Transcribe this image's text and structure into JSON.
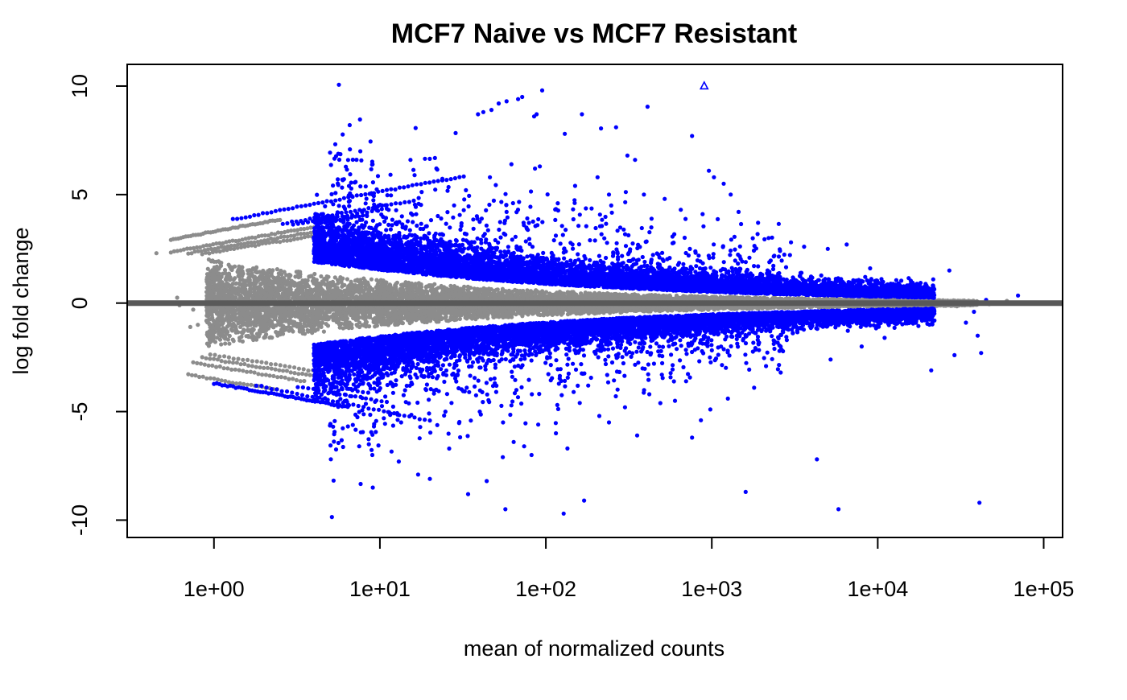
{
  "chart_data": {
    "type": "scatter",
    "title": "MCF7 Naive vs MCF7 Resistant",
    "xlabel": "mean of normalized counts",
    "ylabel": "log fold change",
    "x_scale": "log10",
    "xlim": [
      0.3,
      130000
    ],
    "ylim": [
      -10.8,
      11
    ],
    "x_ticks": [
      {
        "value": 1,
        "label": "1e+00"
      },
      {
        "value": 10,
        "label": "1e+01"
      },
      {
        "value": 100,
        "label": "1e+02"
      },
      {
        "value": 1000,
        "label": "1e+03"
      },
      {
        "value": 10000,
        "label": "1e+04"
      },
      {
        "value": 100000,
        "label": "1e+05"
      }
    ],
    "y_ticks": [
      {
        "value": -10,
        "label": "-10"
      },
      {
        "value": -5,
        "label": "-5"
      },
      {
        "value": 0,
        "label": "0"
      },
      {
        "value": 5,
        "label": "5"
      },
      {
        "value": 10,
        "label": "10"
      }
    ],
    "grid": false,
    "legend": "none",
    "reference_line": {
      "y": 0,
      "color": "#595959"
    },
    "colors": {
      "significant": "#0000ff",
      "not_significant": "#8c8c8c"
    },
    "series": [
      {
        "status": "significant",
        "color": "#0000ff",
        "points": [
          [
            95,
            9.8
          ],
          [
            72,
            9.5
          ],
          [
            68,
            9.4
          ],
          [
            58,
            9.3
          ],
          [
            52,
            9.2
          ],
          [
            47,
            8.9
          ],
          [
            42,
            8.8
          ],
          [
            39,
            8.7
          ],
          [
            410,
            9.05
          ],
          [
            165,
            8.7
          ],
          [
            88,
            8.7
          ],
          [
            85,
            8.6
          ],
          [
            215,
            8.05
          ],
          [
            265,
            8.1
          ],
          [
            130,
            7.8
          ],
          [
            760,
            7.7
          ],
          [
            310,
            6.8
          ],
          [
            345,
            6.6
          ],
          [
            92,
            6.3
          ],
          [
            86,
            6.2
          ],
          [
            960,
            6.1
          ],
          [
            1030,
            5.8
          ],
          [
            1180,
            5.5
          ],
          [
            1300,
            5.0
          ],
          [
            1900,
            3.7
          ],
          [
            3000,
            2.8
          ],
          [
            5000,
            2.5
          ],
          [
            6500,
            2.7
          ],
          [
            27000,
            1.5
          ],
          [
            70000,
            0.35
          ],
          [
            45000,
            0.15
          ],
          [
            38000,
            -0.4
          ],
          [
            34000,
            -0.9
          ],
          [
            40000,
            -1.5
          ],
          [
            42000,
            -2.3
          ],
          [
            29000,
            -2.4
          ],
          [
            21000,
            -3.1
          ],
          [
            41000,
            -9.2
          ],
          [
            4300,
            -7.2
          ],
          [
            1600,
            -8.7
          ],
          [
            5800,
            -9.5
          ],
          [
            128,
            -9.7
          ],
          [
            57,
            -9.5
          ],
          [
            34,
            -8.8
          ],
          [
            44,
            -8.2
          ],
          [
            170,
            -9.1
          ],
          [
            760,
            -6.2
          ],
          [
            860,
            -5.4
          ],
          [
            355,
            -6.1
          ],
          [
            135,
            -6.7
          ],
          [
            82,
            -7.0
          ],
          [
            74,
            -6.6
          ],
          [
            20,
            -8.1
          ],
          [
            17,
            -7.9
          ],
          [
            13,
            -7.3
          ],
          [
            55,
            -7.1
          ],
          [
            64,
            -6.4
          ],
          [
            115,
            -6.0
          ],
          [
            240,
            -5.5
          ],
          [
            9,
            -7.0
          ],
          [
            7.5,
            -6.6
          ],
          [
            390,
            5.0
          ],
          [
            520,
            4.8
          ],
          [
            650,
            4.3
          ],
          [
            880,
            4.1
          ],
          [
            150,
            5.4
          ],
          [
            205,
            5.8
          ],
          [
            240,
            5.0
          ],
          [
            118,
            4.6
          ],
          [
            62,
            6.4
          ],
          [
            46,
            5.8
          ],
          [
            58,
            4.2
          ],
          [
            33,
            5.2
          ],
          [
            28,
            4.5
          ],
          [
            1450,
            4.2
          ],
          [
            2200,
            3.0
          ],
          [
            3600,
            2.6
          ],
          [
            9000,
            1.6
          ],
          [
            16000,
            0.8
          ],
          [
            20000,
            0.6
          ],
          [
            11000,
            -1.6
          ],
          [
            8000,
            -2.0
          ],
          [
            5200,
            -2.6
          ],
          [
            2600,
            -3.2
          ],
          [
            1800,
            -3.9
          ],
          [
            1250,
            -4.4
          ],
          [
            980,
            -4.9
          ],
          [
            420,
            -4.2
          ],
          [
            300,
            -4.8
          ],
          [
            210,
            -5.2
          ],
          [
            90,
            -5.6
          ],
          [
            40,
            -5.0
          ],
          [
            27,
            -4.6
          ],
          [
            19,
            -4.0
          ],
          [
            600,
            -4.5
          ],
          [
            700,
            -3.6
          ],
          [
            500,
            -3.3
          ],
          [
            180,
            -3.8
          ],
          [
            160,
            -4.6
          ]
        ],
        "rays": [
          {
            "from": 1.3,
            "to": 32,
            "intercept": 3.7,
            "slope": 1.43,
            "count": 55
          },
          {
            "from": 2.6,
            "to": 16,
            "intercept": 3.1,
            "slope": 1.35,
            "count": 30
          },
          {
            "from": 3.0,
            "to": 11,
            "intercept": 3.0,
            "slope": 1.3,
            "count": 20
          },
          {
            "from": 4.2,
            "to": 7.5,
            "intercept": 2.9,
            "slope": 1.25,
            "count": 12
          },
          {
            "from": 1.0,
            "to": 6.4,
            "intercept": -3.7,
            "slope": -1.35,
            "count": 50
          },
          {
            "from": 1.8,
            "to": 20,
            "intercept": -3.4,
            "slope": -1.55,
            "count": 35
          },
          {
            "from": 3.2,
            "to": 11,
            "intercept": -3.2,
            "slope": -1.3,
            "count": 18
          },
          {
            "from": 4.4,
            "to": 8.5,
            "intercept": -3.0,
            "slope": -1.2,
            "count": 10
          }
        ],
        "bands": [
          {
            "from": 4,
            "to": 22000,
            "side": "up",
            "count": 6500
          },
          {
            "from": 4,
            "to": 22000,
            "side": "down",
            "count": 6500
          },
          {
            "from": 5,
            "to": 3000,
            "side": "up_wide",
            "count": 900
          },
          {
            "from": 5,
            "to": 3000,
            "side": "down_wide",
            "count": 900
          }
        ]
      },
      {
        "status": "not_significant",
        "color": "#8c8c8c",
        "points": [
          [
            0.45,
            2.3
          ],
          [
            0.62,
            -0.1
          ],
          [
            0.75,
            -0.3
          ],
          [
            0.6,
            0.25
          ],
          [
            0.8,
            -1.0
          ],
          [
            0.72,
            -1.1
          ],
          [
            22000,
            0.1
          ],
          [
            30000,
            -0.15
          ],
          [
            47000,
            -0.05
          ],
          [
            60000,
            0.1
          ],
          [
            35000,
            0.0
          ]
        ],
        "rays": [
          {
            "from": 0.55,
            "to": 2.5,
            "intercept": 3.3,
            "slope": 1.4,
            "count": 45
          },
          {
            "from": 0.55,
            "to": 4.0,
            "intercept": 2.7,
            "slope": 1.35,
            "count": 45
          },
          {
            "from": 0.7,
            "to": 4.2,
            "intercept": 2.5,
            "slope": 1.3,
            "count": 40
          },
          {
            "from": 0.85,
            "to": 4.5,
            "intercept": 2.35,
            "slope": 1.25,
            "count": 35
          },
          {
            "from": 0.7,
            "to": 2.4,
            "intercept": -3.5,
            "slope": -1.3,
            "count": 25
          },
          {
            "from": 0.75,
            "to": 3.5,
            "intercept": -2.9,
            "slope": -1.3,
            "count": 30
          },
          {
            "from": 0.85,
            "to": 4.0,
            "intercept": -2.6,
            "slope": -1.25,
            "count": 30
          },
          {
            "from": 0.95,
            "to": 4.5,
            "intercept": -2.4,
            "slope": -1.2,
            "count": 25
          }
        ],
        "bands": [
          {
            "from": 0.9,
            "to": 40000,
            "side": "core",
            "count": 9000
          }
        ]
      }
    ],
    "outliers": [
      {
        "x": 900,
        "y": 10.0,
        "marker": "open-triangle",
        "color": "#0000ff"
      }
    ]
  }
}
